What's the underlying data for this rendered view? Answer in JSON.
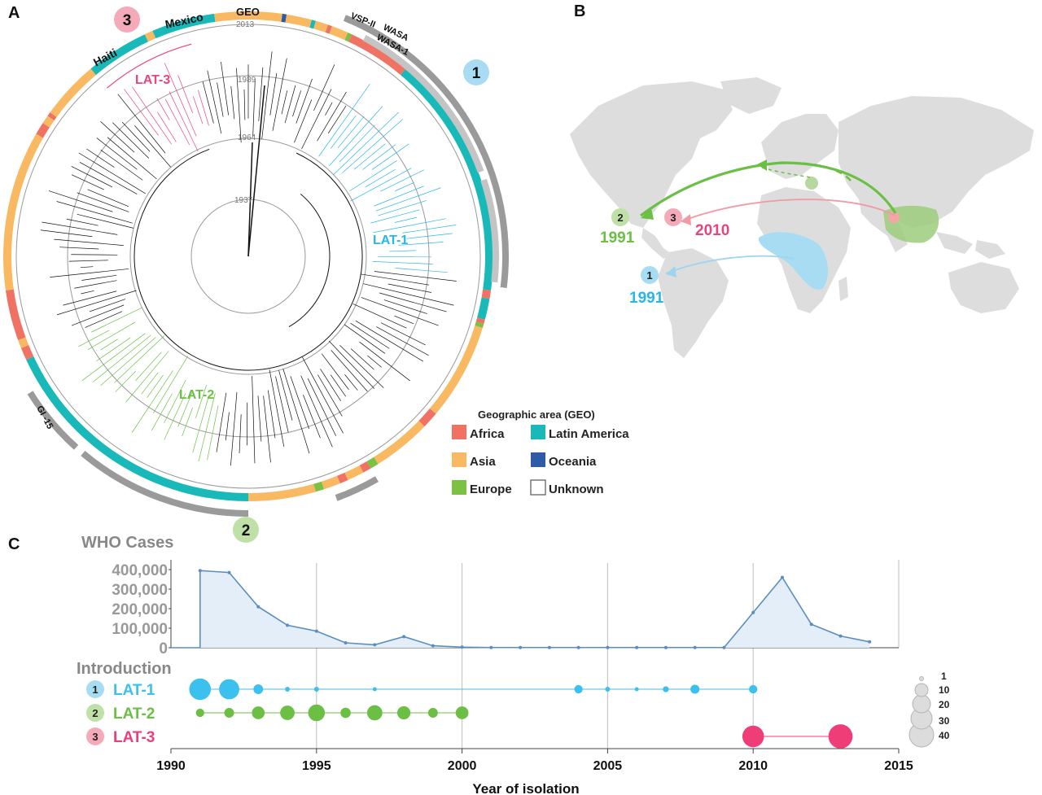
{
  "panels": {
    "a": "A",
    "b": "B",
    "c": "C"
  },
  "tree": {
    "geo_label": "GEO",
    "ring_years": [
      "2013",
      "1989",
      "1964",
      "1937"
    ],
    "clade_labels": {
      "lat1": "LAT-1",
      "lat2": "LAT-2",
      "lat3": "LAT-3"
    },
    "outer_labels": {
      "vsp": "VSP-II",
      "wasa": "WASA",
      "wasa1": "WASA-1",
      "gi15": "GI -15",
      "haiti": "Haiti",
      "mexico": "Mexico"
    },
    "markers": [
      "1",
      "2",
      "3"
    ]
  },
  "legend": {
    "title": "Geographic area (GEO)",
    "items": [
      {
        "label": "Africa",
        "color": "#f07263"
      },
      {
        "label": "Latin America",
        "color": "#19b9b9"
      },
      {
        "label": "Asia",
        "color": "#f9b962"
      },
      {
        "label": "Oceania",
        "color": "#2e5aa8"
      },
      {
        "label": "Europe",
        "color": "#7cc242"
      },
      {
        "label": "Unknown",
        "color": "#ffffff"
      }
    ]
  },
  "map": {
    "routes": [
      {
        "marker": "1",
        "year": "1991",
        "color": "#29b6e8"
      },
      {
        "marker": "2",
        "year": "1991",
        "color": "#6cbf45"
      },
      {
        "marker": "3",
        "year": "2010",
        "color": "#e8457a"
      }
    ]
  },
  "timeline": {
    "who_title": "WHO Cases",
    "intro_title": "Introduction",
    "xlabel": "Year of isolation",
    "size_legend": [
      "1",
      "10",
      "20",
      "30",
      "40"
    ]
  },
  "chart_data": {
    "type": "area",
    "title": "WHO Cases",
    "xlabel": "Year of isolation",
    "ylabel": "",
    "x": [
      1990,
      1991,
      1992,
      1993,
      1994,
      1995,
      1996,
      1997,
      1998,
      1999,
      2000,
      2001,
      2002,
      2003,
      2004,
      2005,
      2006,
      2007,
      2008,
      2009,
      2010,
      2011,
      2012,
      2013,
      2014
    ],
    "values": [
      0,
      395000,
      385000,
      210000,
      115000,
      85000,
      25000,
      15000,
      57000,
      10000,
      3000,
      1000,
      1000,
      1000,
      1000,
      1000,
      1000,
      1000,
      1000,
      1000,
      180000,
      360000,
      120000,
      60000,
      30000
    ],
    "xlim": [
      1990,
      2015
    ],
    "ylim": [
      0,
      400000
    ],
    "xticks": [
      "1990",
      "1995",
      "2000",
      "2005",
      "2010",
      "2015"
    ],
    "yticks": [
      "400,000",
      "300,000",
      "200,000",
      "100,000",
      "0"
    ],
    "introductions": [
      {
        "name": "LAT-1",
        "color": "#3cc0ee",
        "years": [
          1991,
          1992,
          1993,
          1994,
          1995,
          1997,
          2004,
          2005,
          2006,
          2007,
          2008,
          2010
        ],
        "counts": [
          40,
          35,
          8,
          2,
          2,
          1,
          6,
          2,
          1,
          3,
          7,
          6
        ]
      },
      {
        "name": "LAT-2",
        "color": "#6cbf45",
        "years": [
          1991,
          1992,
          1993,
          1994,
          1995,
          1996,
          1997,
          1998,
          1999,
          2000
        ],
        "counts": [
          6,
          8,
          14,
          18,
          24,
          9,
          20,
          15,
          8,
          14
        ]
      },
      {
        "name": "LAT-3",
        "color": "#ee3d77",
        "years": [
          2010,
          2013
        ],
        "counts": [
          40,
          50
        ]
      }
    ]
  }
}
